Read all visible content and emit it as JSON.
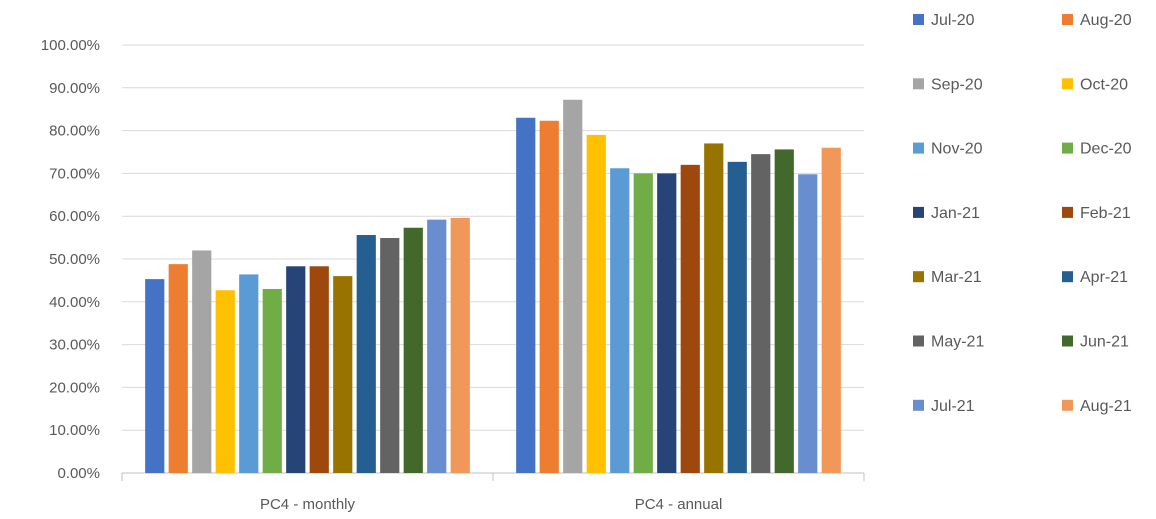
{
  "chart_data": {
    "type": "bar",
    "title": "",
    "xlabel": "",
    "ylabel": "",
    "ylim": [
      0,
      100
    ],
    "y_ticks": [
      "0.00%",
      "10.00%",
      "20.00%",
      "30.00%",
      "40.00%",
      "50.00%",
      "60.00%",
      "70.00%",
      "80.00%",
      "90.00%",
      "100.00%"
    ],
    "grid": true,
    "legend_position": "right",
    "categories": [
      "PC4 - monthly",
      "PC4 - annual"
    ],
    "series": [
      {
        "name": "Jul-20",
        "color": "#4472C4",
        "values": [
          45.3,
          83.0
        ]
      },
      {
        "name": "Aug-20",
        "color": "#ED7D31",
        "values": [
          48.8,
          82.3
        ]
      },
      {
        "name": "Sep-20",
        "color": "#A5A5A5",
        "values": [
          52.0,
          87.2
        ]
      },
      {
        "name": "Oct-20",
        "color": "#FFC000",
        "values": [
          42.7,
          79.0
        ]
      },
      {
        "name": "Nov-20",
        "color": "#5B9BD5",
        "values": [
          46.4,
          71.2
        ]
      },
      {
        "name": "Dec-20",
        "color": "#70AD47",
        "values": [
          43.0,
          70.0
        ]
      },
      {
        "name": "Jan-21",
        "color": "#264478",
        "values": [
          48.3,
          70.0
        ]
      },
      {
        "name": "Feb-21",
        "color": "#9E480E",
        "values": [
          48.3,
          72.0
        ]
      },
      {
        "name": "Mar-21",
        "color": "#997300",
        "values": [
          46.0,
          77.0
        ]
      },
      {
        "name": "Apr-21",
        "color": "#255E91",
        "values": [
          55.6,
          72.7
        ]
      },
      {
        "name": "May-21",
        "color": "#636363",
        "values": [
          54.9,
          74.5
        ]
      },
      {
        "name": "Jun-21",
        "color": "#43682B",
        "values": [
          57.3,
          75.6
        ]
      },
      {
        "name": "Jul-21",
        "color": "#698ED0",
        "values": [
          59.2,
          69.8
        ]
      },
      {
        "name": "Aug-21",
        "color": "#F1975A",
        "values": [
          59.6,
          76.0
        ]
      }
    ]
  }
}
